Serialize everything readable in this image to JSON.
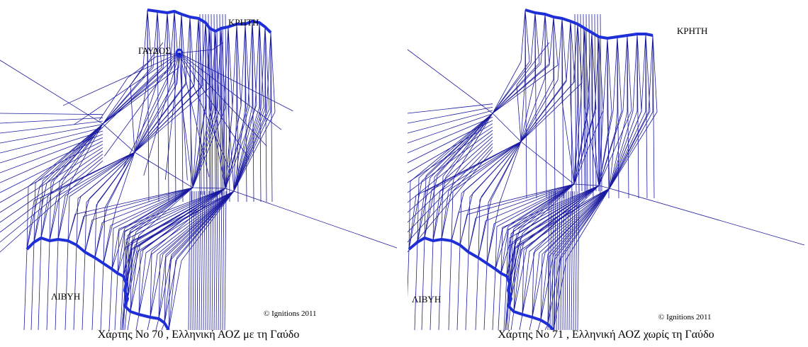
{
  "maps": [
    {
      "caption": "Χάρτης Νο 70 , Ελληνική ΑΟΖ με τη Γαύδο",
      "labels": {
        "crete": "ΚΡΗΤΗ",
        "gavdos": "ΓΑΥΔΟΣ",
        "libya": "ΛΙΒΥΗ"
      },
      "copyright": "© Ignitions 2011",
      "show_gavdos": true
    },
    {
      "caption": "Χάρτης Νο 71 , Ελληνική ΑΟΖ χωρίς τη Γαύδο",
      "labels": {
        "crete": "ΚΡΗΤΗ",
        "libya": "ΛΙΒΥΗ"
      },
      "copyright": "© Ignitions 2011",
      "show_gavdos": false
    }
  ],
  "colors": {
    "line": "#1a1aa0",
    "coast": "#1f2fd8"
  }
}
